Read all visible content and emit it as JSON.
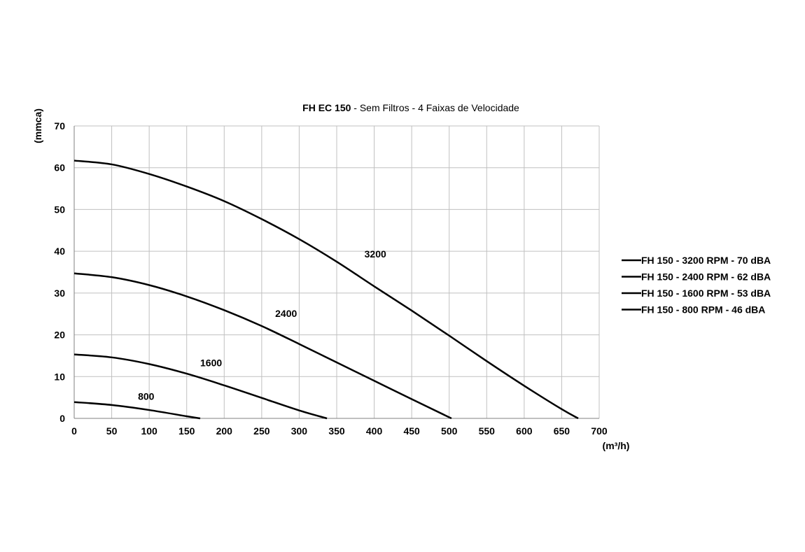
{
  "chart_data": {
    "type": "line",
    "title_bold": "FH EC 150",
    "title_rest": " - Sem Filtros - 4 Faixas de Velocidade",
    "ylabel": "(mmca)",
    "xlabel": "(m³/h)",
    "xlim": [
      0,
      700
    ],
    "ylim": [
      0,
      70
    ],
    "xticks": [
      0,
      50,
      100,
      150,
      200,
      250,
      300,
      350,
      400,
      450,
      500,
      550,
      600,
      650,
      700
    ],
    "yticks": [
      0,
      10,
      20,
      30,
      40,
      50,
      60,
      70
    ],
    "grid": true,
    "legend_position": "right",
    "series": [
      {
        "name": "FH 150 - 3200 RPM - 70 dBA",
        "curve_label": "3200",
        "x": [
          0,
          50,
          100,
          150,
          200,
          250,
          300,
          350,
          400,
          450,
          500,
          550,
          600,
          650,
          672
        ],
        "y": [
          61.7,
          60.8,
          58.5,
          55.5,
          52,
          47.7,
          42.9,
          37.5,
          31.6,
          25.8,
          19.8,
          13.7,
          7.8,
          2.2,
          0
        ]
      },
      {
        "name": "FH 150 - 2400 RPM - 62 dBA",
        "curve_label": "2400",
        "x": [
          0,
          50,
          100,
          150,
          200,
          250,
          300,
          350,
          400,
          450,
          503
        ],
        "y": [
          34.7,
          33.8,
          31.9,
          29.2,
          25.9,
          22.1,
          17.8,
          13.4,
          9.0,
          4.6,
          0
        ]
      },
      {
        "name": "FH 150 - 1600 RPM - 53 dBA",
        "curve_label": "1600",
        "x": [
          0,
          50,
          100,
          150,
          200,
          250,
          300,
          337
        ],
        "y": [
          15.3,
          14.6,
          13.0,
          10.7,
          7.9,
          4.9,
          1.9,
          0
        ]
      },
      {
        "name": "FH 150 - 800 RPM - 46 dBA",
        "curve_label": "800",
        "x": [
          0,
          50,
          100,
          150,
          168
        ],
        "y": [
          3.9,
          3.2,
          2.0,
          0.5,
          0
        ]
      }
    ],
    "curve_labels": [
      {
        "text": "3200",
        "x": 387,
        "y": 38.5
      },
      {
        "text": "2400",
        "x": 268,
        "y": 24.3
      },
      {
        "text": "1600",
        "x": 168,
        "y": 12.5
      },
      {
        "text": "800",
        "x": 85,
        "y": 4.4
      }
    ],
    "colors": {
      "line": "#000000",
      "grid": "#c0c0c0",
      "axis": "#808080"
    }
  }
}
